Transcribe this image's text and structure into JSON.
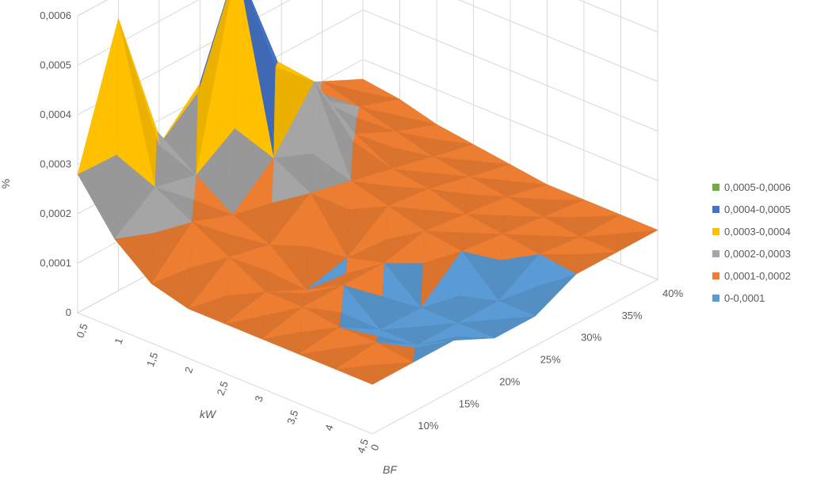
{
  "chart_data": {
    "type": "surface",
    "ylabel": "%",
    "xlabel": "kW",
    "zlabel": "BF",
    "value_ticks": [
      "0",
      "0,0001",
      "0,0002",
      "0,0003",
      "0,0004",
      "0,0005",
      "0,0006"
    ],
    "value_range": [
      0,
      0.0006
    ],
    "kw_ticks": [
      "0,5",
      "1",
      "1,5",
      "2",
      "2,5",
      "3",
      "3,5",
      "4",
      "4,5"
    ],
    "bf_ticks": [
      "0",
      "10%",
      "15%",
      "20%",
      "25%",
      "30%",
      "35%",
      "40%"
    ],
    "legend": [
      {
        "label": "0,0005-0,0006",
        "color": "#70ad47"
      },
      {
        "label": "0,0004-0,0005",
        "color": "#4472c4"
      },
      {
        "label": "0,0003-0,0004",
        "color": "#ffc000"
      },
      {
        "label": "0,0002-0,0003",
        "color": "#a5a5a5"
      },
      {
        "label": "0,0001-0,0002",
        "color": "#ed7d31"
      },
      {
        "label": "0-0,0001",
        "color": "#5b9bd5"
      }
    ],
    "grid": true,
    "legend_position": "right",
    "surface_values": [
      [
        0.00028,
        0.00055,
        0.00025,
        0.00033,
        0.0003,
        0.00024,
        0.0002,
        0.00016
      ],
      [
        0.00018,
        0.00024,
        0.00022,
        0.0006,
        0.00036,
        0.00024,
        0.00018,
        0.00015
      ],
      [
        0.00012,
        0.0002,
        0.00017,
        0.00024,
        0.00035,
        0.0002,
        0.00016,
        0.00013
      ],
      [
        0.0001,
        0.00016,
        0.00014,
        0.0002,
        0.00018,
        0.00016,
        0.00014,
        0.00012
      ],
      [
        0.0001,
        0.00012,
        8e-05,
        0.0001,
        0.00016,
        0.00015,
        0.00013,
        0.00011
      ],
      [
        0.0001,
        0.00012,
        0.00012,
        0.00012,
        0.00014,
        0.00013,
        0.00012,
        0.0001
      ],
      [
        0.0001,
        0.00011,
        6e-05,
        6e-05,
        0.00013,
        0.00012,
        0.00011,
        0.0001
      ],
      [
        0.0001,
        0.00011,
        6e-05,
        6e-05,
        6e-05,
        0.00011,
        0.0001,
        0.0001
      ],
      [
        0.0001,
        0.0001,
        0.0001,
        6e-05,
        6e-05,
        0.0001,
        0.0001,
        0.0001
      ]
    ]
  }
}
